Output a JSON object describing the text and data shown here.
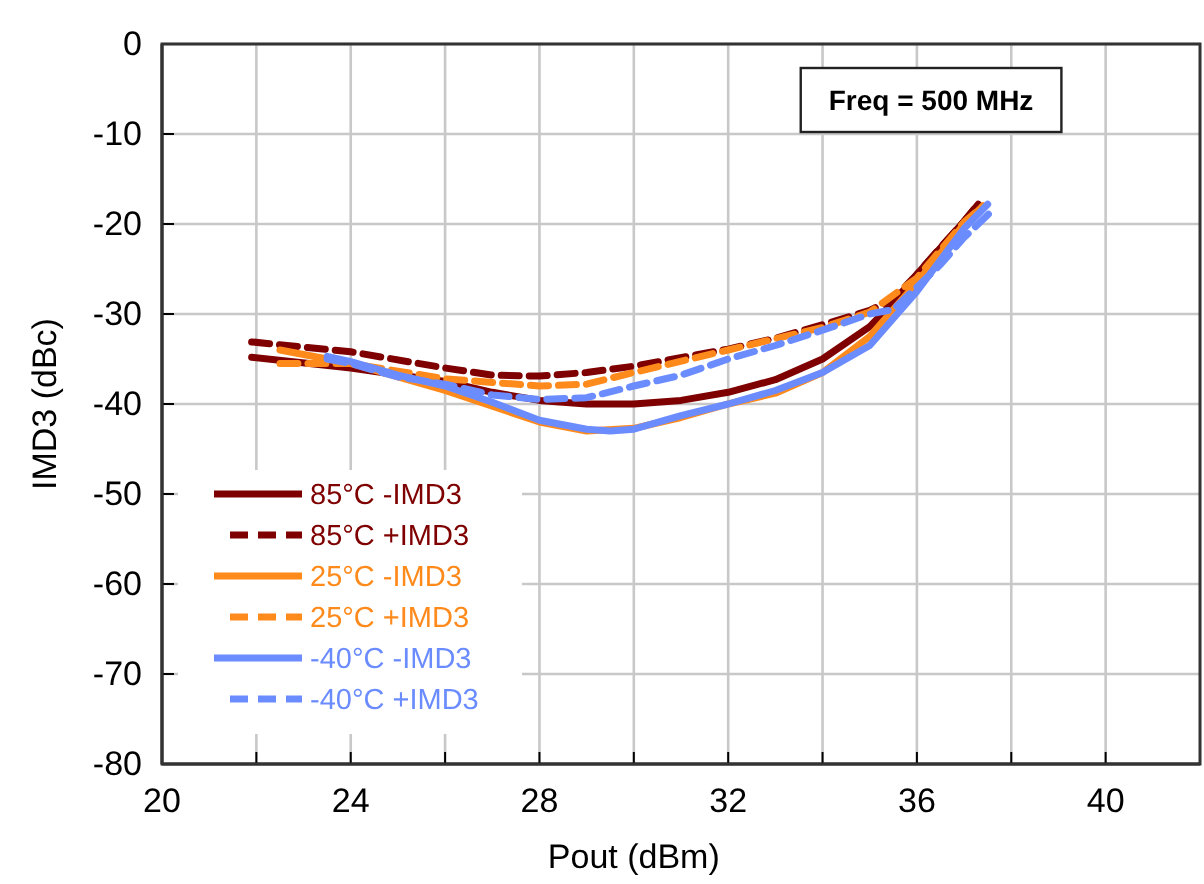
{
  "chart_data": {
    "type": "line",
    "xlabel": "Pout (dBm)",
    "ylabel": "IMD3 (dBc)",
    "annotations": [
      "Freq = 500 MHz"
    ],
    "xlim": [
      20,
      42
    ],
    "ylim": [
      -80,
      0
    ],
    "xticks": [
      20,
      {
        "value": 22,
        "label": null
      },
      24,
      {
        "value": 26,
        "label": null
      },
      28,
      {
        "value": 30,
        "label": null
      },
      32,
      {
        "value": 34,
        "label": null
      },
      36,
      {
        "value": 38,
        "label": null
      },
      40
    ],
    "yticks": [
      -80,
      -70,
      -60,
      -50,
      -40,
      -30,
      -20,
      -10,
      0
    ],
    "grid": true,
    "legend": "bottom left",
    "marker": "none",
    "series": [
      {
        "name": "85°C -IMD3",
        "color": "#7f0000",
        "line_style": "solid",
        "x": [
          21.9,
          24,
          26,
          27,
          28,
          29,
          30,
          31,
          32,
          33,
          34,
          35,
          35.5,
          36,
          37,
          37.3
        ],
        "values": [
          -34.8,
          -36,
          -37.5,
          -38.7,
          -39.6,
          -40,
          -40,
          -39.6,
          -38.7,
          -37.3,
          -35,
          -31.4,
          -28.7,
          -25.6,
          -19.7,
          -17.8
        ]
      },
      {
        "name": "85°C +IMD3",
        "color": "#7f0000",
        "line_style": "dashed",
        "x": [
          21.9,
          24,
          26,
          27,
          28,
          29,
          30,
          32,
          33,
          34,
          35,
          35.5,
          36,
          36.5,
          37,
          37.3
        ],
        "values": [
          -33.1,
          -34.2,
          -36,
          -36.8,
          -36.9,
          -36.5,
          -35.8,
          -33.9,
          -32.7,
          -31.2,
          -29.6,
          -28.3,
          -25.6,
          -22.6,
          -19.7,
          -17.8
        ]
      },
      {
        "name": "25°C -IMD3",
        "color": "#ff8a1c",
        "line_style": "solid",
        "x": [
          22.5,
          24,
          26,
          28,
          29,
          30,
          31,
          32,
          33,
          34,
          35,
          36,
          37,
          37.4
        ],
        "values": [
          -34,
          -35.5,
          -38.5,
          -42,
          -43,
          -42.7,
          -41.5,
          -40,
          -38.8,
          -36.5,
          -32.5,
          -26.5,
          -20,
          -18
        ]
      },
      {
        "name": "25°C +IMD3",
        "color": "#ff8a1c",
        "line_style": "dashed",
        "x": [
          22.5,
          24,
          26,
          28,
          29,
          30,
          32,
          34,
          35,
          36,
          37,
          37.4
        ],
        "values": [
          -35.5,
          -35.5,
          -37.2,
          -38,
          -37.8,
          -36.5,
          -34,
          -31.5,
          -29.8,
          -26,
          -19.8,
          -18
        ]
      },
      {
        "name": "-40°C -IMD3",
        "color": "#6b8cff",
        "line_style": "solid",
        "x": [
          23.5,
          24,
          25,
          26,
          27,
          28,
          29,
          29.5,
          30,
          31,
          32,
          33,
          34,
          35,
          36,
          37,
          37.5
        ],
        "values": [
          -34.7,
          -35.3,
          -36.8,
          -38,
          -39.8,
          -41.8,
          -42.8,
          -43,
          -42.8,
          -41.3,
          -40,
          -38.5,
          -36.5,
          -33.5,
          -27.5,
          -20.5,
          -17.8
        ]
      },
      {
        "name": "-40°C +IMD3",
        "color": "#6b8cff",
        "line_style": "dashed",
        "x": [
          23.5,
          24,
          25,
          26,
          27,
          28,
          29,
          30,
          31,
          32,
          33,
          34,
          35,
          35.5,
          36,
          36.5,
          37,
          37.6
        ],
        "values": [
          -35,
          -35.5,
          -37,
          -37.8,
          -39,
          -39.5,
          -39.3,
          -38,
          -36.8,
          -35,
          -33.5,
          -31.8,
          -30,
          -29.5,
          -27,
          -24.5,
          -21.5,
          -18.5
        ]
      }
    ]
  }
}
